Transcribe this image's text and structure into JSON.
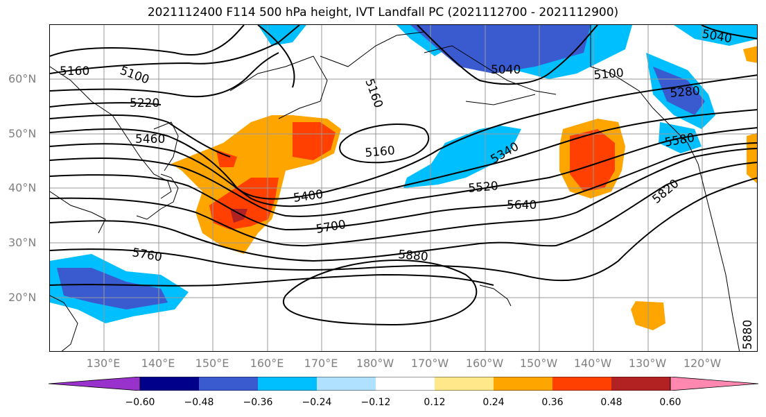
{
  "title": "2021112400 F114 500 hPa height, IVT Landfall PC (2021112700 - 2021112900)",
  "lat_labels": [
    "60°N",
    "50°N",
    "40°N",
    "30°N",
    "20°N"
  ],
  "lon_labels": [
    "130°E",
    "140°E",
    "150°E",
    "160°E",
    "170°E",
    "180°W",
    "170°W",
    "160°W",
    "150°W",
    "140°W",
    "130°W",
    "120°W"
  ],
  "contour_labels": [
    "5160",
    "5100",
    "5220",
    "5460",
    "5400",
    "5160",
    "5160",
    "5040",
    "5040",
    "5100",
    "5280",
    "5340",
    "5520",
    "5640",
    "5700",
    "5760",
    "5880",
    "5820",
    "5580",
    "5880"
  ],
  "colorbar": {
    "colors": [
      "#9932CC",
      "#00008B",
      "#3A5BD0",
      "#00BFFF",
      "#B0E2FF",
      "#FFFFFF",
      "#FFE88A",
      "#FFA500",
      "#FF4000",
      "#B22222",
      "#FF88B0"
    ],
    "tick_labels": [
      "−0.60",
      "−0.48",
      "−0.36",
      "−0.24",
      "−0.12",
      "0.12",
      "0.24",
      "0.36",
      "0.48",
      "0.60"
    ]
  },
  "colors": {
    "land_outline": "#000000",
    "gridline": "#999999",
    "contour": "#000000"
  }
}
